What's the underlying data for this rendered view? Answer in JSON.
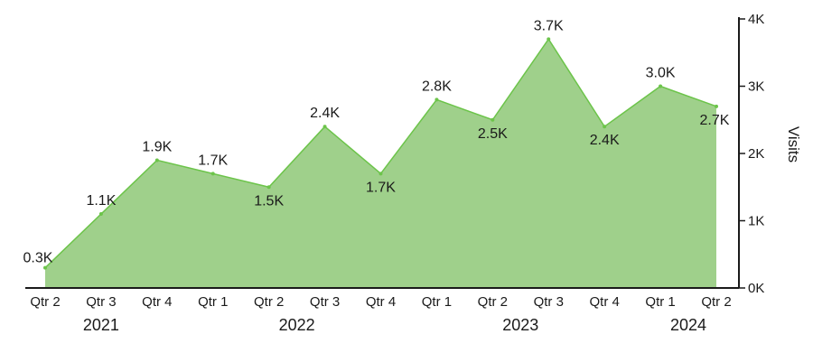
{
  "chart_data": {
    "type": "area",
    "title": "",
    "xlabel": "",
    "ylabel": "Visits",
    "ylim": [
      0,
      4000
    ],
    "y_axis_position": "right",
    "y_ticks": [
      0,
      1000,
      2000,
      3000,
      4000
    ],
    "y_tick_labels": [
      "0K",
      "1K",
      "2K",
      "3K",
      "4K"
    ],
    "grid": false,
    "legend": "none",
    "fill_color": "#9fd08b",
    "line_color": "#6cc44a",
    "categories": [
      "Qtr 2",
      "Qtr 3",
      "Qtr 4",
      "Qtr 1",
      "Qtr 2",
      "Qtr 3",
      "Qtr 4",
      "Qtr 1",
      "Qtr 2",
      "Qtr 3",
      "Qtr 4",
      "Qtr 1",
      "Qtr 2"
    ],
    "years": [
      {
        "label": "2021",
        "start": 0,
        "end": 2
      },
      {
        "label": "2022",
        "start": 3,
        "end": 6
      },
      {
        "label": "2023",
        "start": 7,
        "end": 10
      },
      {
        "label": "2024",
        "start": 11,
        "end": 12
      }
    ],
    "values": [
      300,
      1100,
      1900,
      1700,
      1500,
      2400,
      1700,
      2800,
      2500,
      3700,
      2400,
      3000,
      2700
    ],
    "data_labels": [
      "0.3K",
      "1.1K",
      "1.9K",
      "1.7K",
      "1.5K",
      "2.4K",
      "1.7K",
      "2.8K",
      "2.5K",
      "3.7K",
      "2.4K",
      "3.0K",
      "2.7K"
    ]
  }
}
